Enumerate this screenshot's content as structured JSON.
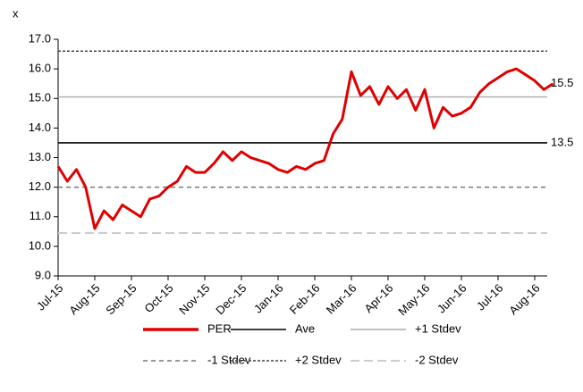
{
  "chart_data": {
    "type": "line",
    "y_label": "x",
    "xticks": [
      "Jul-15",
      "Aug-15",
      "Sep-15",
      "Oct-15",
      "Nov-15",
      "Dec-15",
      "Jan-16",
      "Feb-16",
      "Mar-16",
      "Apr-16",
      "May-16",
      "Jun-16",
      "Jul-16",
      "Aug-16"
    ],
    "ylim": [
      9,
      17
    ],
    "yticks": [
      {
        "value": 9,
        "label": "9.0"
      },
      {
        "value": 10,
        "label": "10.0"
      },
      {
        "value": 11,
        "label": "11.0"
      },
      {
        "value": 12,
        "label": "12.0"
      },
      {
        "value": 13,
        "label": "13.0"
      },
      {
        "value": 14,
        "label": "14.0"
      },
      {
        "value": 15,
        "label": "15.0"
      },
      {
        "value": 16,
        "label": "16.0"
      },
      {
        "value": 17,
        "label": "17.0"
      }
    ],
    "series": [
      {
        "name": "PER",
        "color": "#e00000",
        "values": [
          12.7,
          12.2,
          12.6,
          12.0,
          10.6,
          11.2,
          10.9,
          11.4,
          11.2,
          11.0,
          11.6,
          11.7,
          12.0,
          12.2,
          12.7,
          12.5,
          12.5,
          12.8,
          13.2,
          12.9,
          13.2,
          13.0,
          12.9,
          12.8,
          12.6,
          12.5,
          12.7,
          12.6,
          12.8,
          12.9,
          13.8,
          14.3,
          15.9,
          15.1,
          15.4,
          14.8,
          15.4,
          15.0,
          15.3,
          14.6,
          15.3,
          14.0,
          14.7,
          14.4,
          14.5,
          14.7,
          15.2,
          15.5,
          15.7,
          15.9,
          16.0,
          15.8,
          15.6,
          15.3,
          15.5
        ]
      }
    ],
    "lines": [
      {
        "name": "Ave",
        "value": 13.5,
        "color": "#000000",
        "dash": "none"
      },
      {
        "name": "+1 Stdev",
        "value": 15.05,
        "color": "#aaaaaa",
        "dash": "none"
      },
      {
        "name": "-1 Stdev",
        "value": 12.0,
        "color": "#777777",
        "dash": "5,4"
      },
      {
        "name": "+2 Stdev",
        "value": 16.6,
        "color": "#444444",
        "dash": "3,2"
      },
      {
        "name": "-2 Stdev",
        "value": 10.45,
        "color": "#cccccc",
        "dash": "10,5"
      }
    ],
    "annotations": [
      {
        "text": "15.5",
        "y": 15.5
      },
      {
        "text": "13.5",
        "y": 13.5
      }
    ]
  }
}
